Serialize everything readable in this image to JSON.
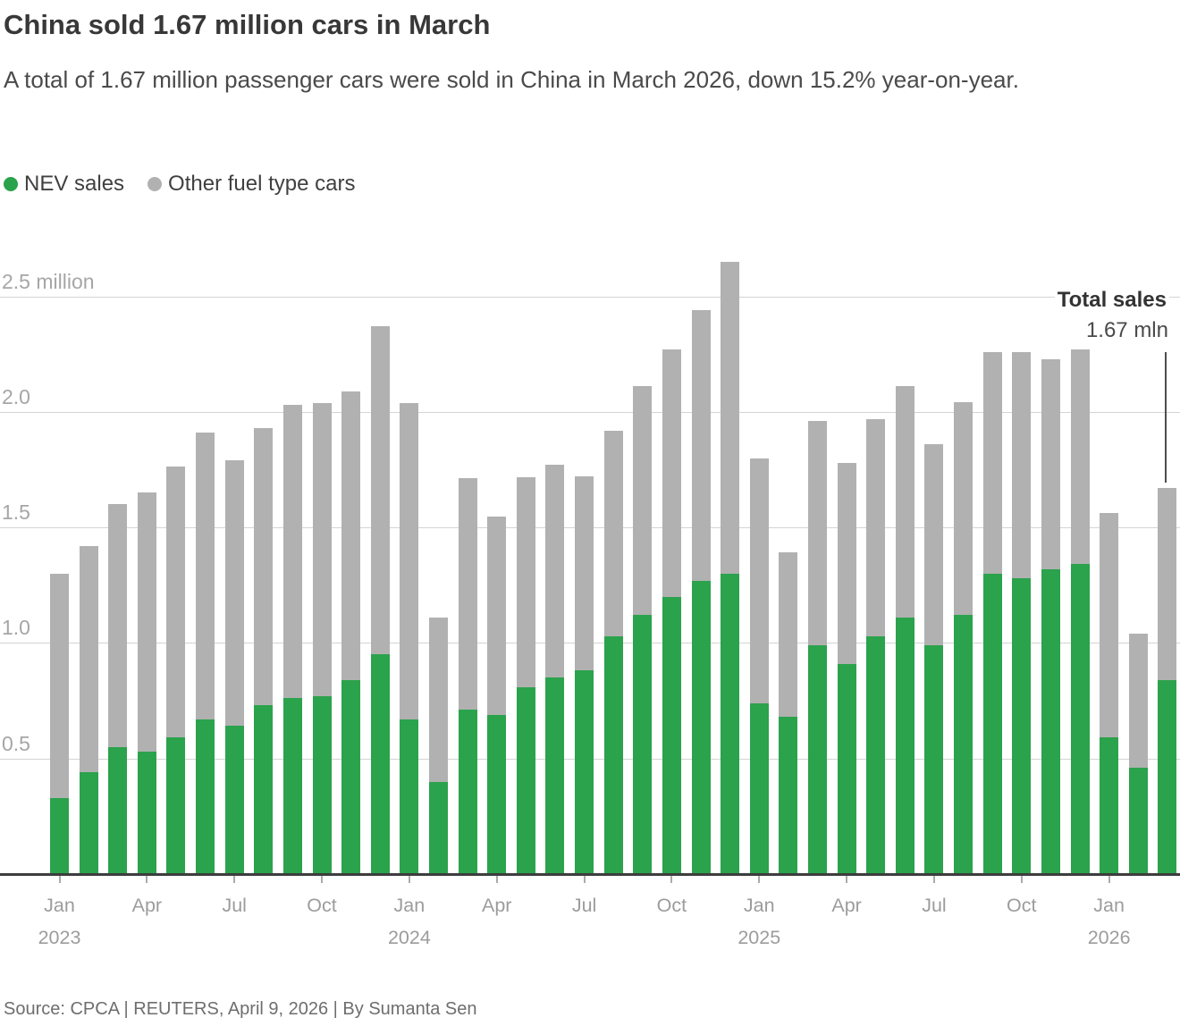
{
  "header": {
    "title": "China sold 1.67 million cars in March",
    "subtitle": "A total of 1.67 million passenger cars were sold in China in March 2026, down 15.2% year-on-year."
  },
  "legend": {
    "nev_label": "NEV sales",
    "other_label": "Other fuel type cars"
  },
  "annotation": {
    "label": "Total sales",
    "value": "1.67 mln"
  },
  "footer": {
    "source": "Source: CPCA | REUTERS, April 9, 2026 | By Sumanta Sen"
  },
  "colors": {
    "nev_green": "#2BA24C",
    "other_gray": "#B1B1B1",
    "baseline": "#3d3d3d",
    "gridline": "#d4d4d4"
  },
  "chart_data": {
    "type": "bar",
    "stacked": true,
    "title": "China sold 1.67 million cars in March",
    "xlabel": "",
    "ylabel": "million cars",
    "ylim": [
      0,
      2.65
    ],
    "grid": true,
    "legend_position": "top-left",
    "y_ticks": [
      {
        "label": "2.5 million",
        "value": 2.5
      },
      {
        "label": "2.0",
        "value": 2.0
      },
      {
        "label": "1.5",
        "value": 1.5
      },
      {
        "label": "1.0",
        "value": 1.0
      },
      {
        "label": "0.5",
        "value": 0.5
      }
    ],
    "categories": [
      "Jan 2023",
      "Feb 2023",
      "Mar 2023",
      "Apr 2023",
      "May 2023",
      "Jun 2023",
      "Jul 2023",
      "Aug 2023",
      "Sep 2023",
      "Oct 2023",
      "Nov 2023",
      "Dec 2023",
      "Jan 2024",
      "Feb 2024",
      "Mar 2024",
      "Apr 2024",
      "May 2024",
      "Jun 2024",
      "Jul 2024",
      "Aug 2024",
      "Sep 2024",
      "Oct 2024",
      "Nov 2024",
      "Dec 2024",
      "Jan 2025",
      "Feb 2025",
      "Mar 2025",
      "Apr 2025",
      "May 2025",
      "Jun 2025",
      "Jul 2025",
      "Aug 2025",
      "Sep 2025",
      "Oct 2025",
      "Nov 2025",
      "Dec 2025",
      "Jan 2026",
      "Feb 2026",
      "Mar 2026"
    ],
    "series": [
      {
        "name": "NEV sales",
        "color": "#2BA24C",
        "values": [
          0.33,
          0.44,
          0.55,
          0.53,
          0.59,
          0.67,
          0.64,
          0.73,
          0.76,
          0.77,
          0.84,
          0.95,
          0.67,
          0.4,
          0.71,
          0.69,
          0.81,
          0.85,
          0.88,
          1.03,
          1.12,
          1.2,
          1.27,
          1.3,
          0.74,
          0.68,
          0.99,
          0.91,
          1.03,
          1.11,
          0.99,
          1.12,
          1.3,
          1.28,
          1.32,
          1.34,
          0.59,
          0.46,
          0.84
        ]
      },
      {
        "name": "Other fuel type cars",
        "color": "#B1B1B1",
        "values": [
          0.97,
          0.98,
          1.05,
          1.12,
          1.17,
          1.24,
          1.15,
          1.2,
          1.27,
          1.27,
          1.25,
          1.42,
          1.37,
          0.71,
          1.0,
          0.86,
          0.91,
          0.92,
          0.84,
          0.89,
          0.99,
          1.07,
          1.17,
          1.35,
          1.06,
          0.71,
          0.97,
          0.87,
          0.94,
          1.0,
          0.87,
          0.92,
          0.96,
          0.98,
          0.91,
          0.93,
          0.97,
          0.58,
          0.83
        ]
      }
    ],
    "totals": [
      1.3,
      1.42,
      1.6,
      1.65,
      1.76,
      1.91,
      1.79,
      1.93,
      2.03,
      2.04,
      2.09,
      2.37,
      2.04,
      1.11,
      1.71,
      1.55,
      1.72,
      1.77,
      1.72,
      1.92,
      2.11,
      2.27,
      2.44,
      2.65,
      1.8,
      1.39,
      1.96,
      1.78,
      1.97,
      2.11,
      1.86,
      2.04,
      2.26,
      2.26,
      2.23,
      2.27,
      1.56,
      1.04,
      1.67
    ],
    "x_ticks": [
      {
        "index": 0,
        "month": "Jan",
        "year": "2023"
      },
      {
        "index": 3,
        "month": "Apr"
      },
      {
        "index": 6,
        "month": "Jul"
      },
      {
        "index": 9,
        "month": "Oct"
      },
      {
        "index": 12,
        "month": "Jan",
        "year": "2024"
      },
      {
        "index": 15,
        "month": "Apr"
      },
      {
        "index": 18,
        "month": "Jul"
      },
      {
        "index": 21,
        "month": "Oct"
      },
      {
        "index": 24,
        "month": "Jan",
        "year": "2025"
      },
      {
        "index": 27,
        "month": "Apr"
      },
      {
        "index": 30,
        "month": "Jul"
      },
      {
        "index": 33,
        "month": "Oct"
      },
      {
        "index": 36,
        "month": "Jan",
        "year": "2026"
      }
    ],
    "annotation": {
      "target_category": "Mar 2026",
      "label": "Total sales",
      "value": "1.67 mln"
    }
  }
}
